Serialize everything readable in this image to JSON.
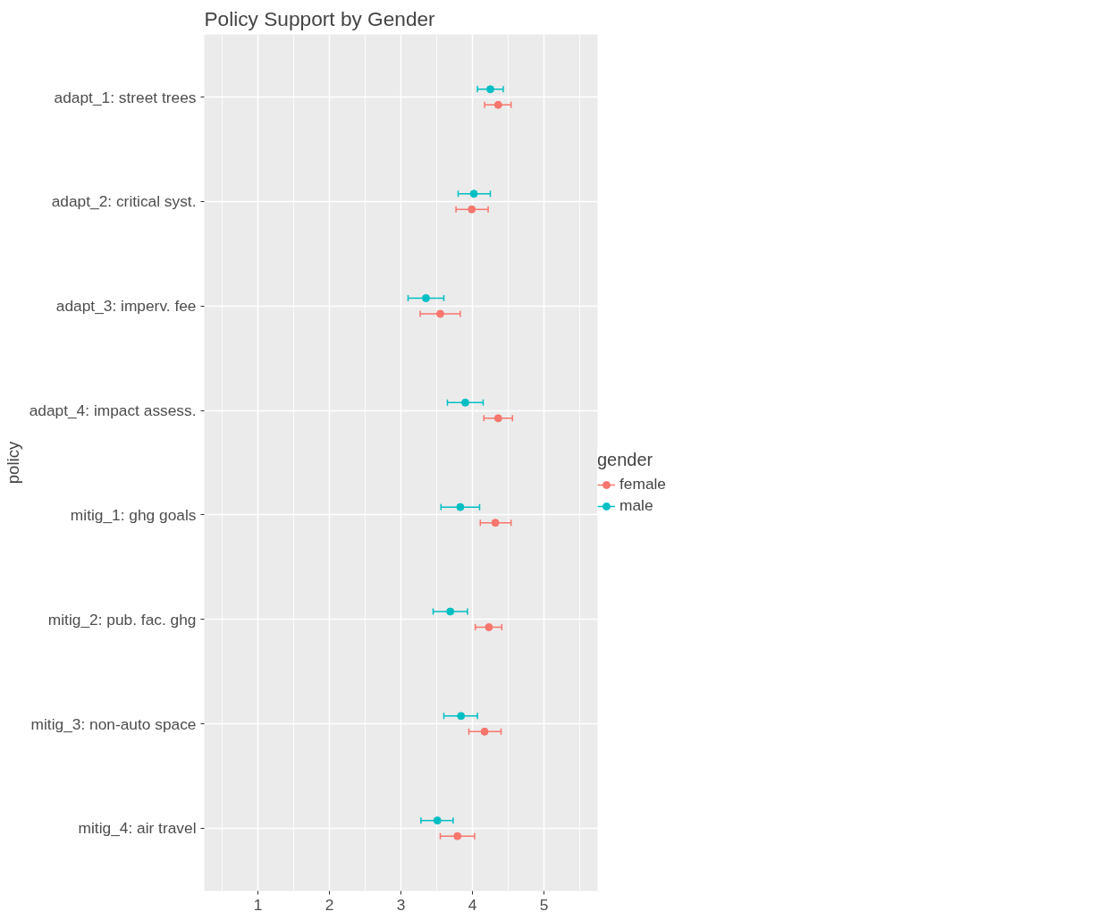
{
  "chart_data": {
    "type": "scatter",
    "title": "Policy Support by Gender",
    "ylabel": "policy",
    "legend_title": "gender",
    "categories": [
      "adapt_1: street trees",
      "adapt_2: critical syst.",
      "adapt_3: imperv. fee",
      "adapt_4: impact assess.",
      "mitig_1: ghg goals",
      "mitig_2: pub. fac. ghg",
      "mitig_3: non-auto space",
      "mitig_4: air travel"
    ],
    "orientation": "horizontal",
    "xlim": [
      0.25,
      5.75
    ],
    "xticks": [
      1,
      2,
      3,
      4,
      5
    ],
    "grid": true,
    "legend": "right",
    "marker": "circle",
    "series": [
      {
        "name": "female",
        "color": "#f8766d",
        "values": [
          4.36,
          3.99,
          3.55,
          4.36,
          4.32,
          4.23,
          4.17,
          3.79
        ],
        "errors": [
          [
            4.17,
            4.54
          ],
          [
            3.77,
            4.22
          ],
          [
            3.27,
            3.83
          ],
          [
            4.16,
            4.56
          ],
          [
            4.11,
            4.54
          ],
          [
            4.04,
            4.41
          ],
          [
            3.95,
            4.4
          ],
          [
            3.55,
            4.03
          ]
        ]
      },
      {
        "name": "male",
        "color": "#00bfc4",
        "values": [
          4.25,
          4.02,
          3.35,
          3.9,
          3.83,
          3.69,
          3.84,
          3.51
        ],
        "errors": [
          [
            4.07,
            4.43
          ],
          [
            3.8,
            4.25
          ],
          [
            3.1,
            3.6
          ],
          [
            3.65,
            4.15
          ],
          [
            3.56,
            4.1
          ],
          [
            3.45,
            3.93
          ],
          [
            3.6,
            4.07
          ],
          [
            3.28,
            3.73
          ]
        ]
      }
    ]
  }
}
